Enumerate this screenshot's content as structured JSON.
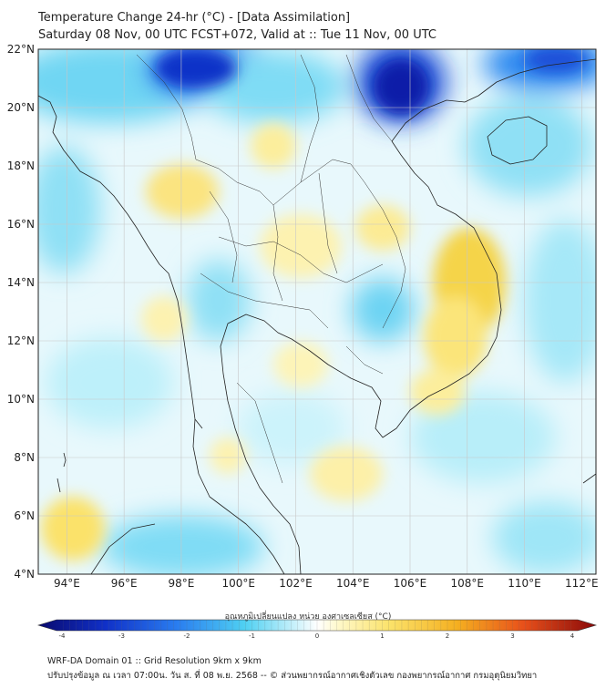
{
  "title": {
    "line1": "Temperature Change 24-hr (°C) - [Data Assimilation]",
    "line2": "Saturday 08 Nov, 00 UTC FCST+072, Valid at :: Tue 11 Nov, 00 UTC"
  },
  "map": {
    "lat_labels": [
      "22°N",
      "20°N",
      "18°N",
      "16°N",
      "14°N",
      "12°N",
      "10°N",
      "8°N",
      "6°N",
      "4°N"
    ],
    "lon_labels": [
      "94°E",
      "96°E",
      "98°E",
      "100°E",
      "102°E",
      "104°E",
      "106°E",
      "108°E",
      "110°E",
      "112°E"
    ],
    "lat_range": [
      4,
      22
    ],
    "lon_range": [
      93,
      112.5
    ]
  },
  "colorbar": {
    "title": "อุณหภูมิเปลี่ยนแปลง หน่วย องศาเซลเซียส (°C)",
    "ticks": [
      "-4",
      "-3",
      "-2",
      "-1",
      "0",
      "1",
      "2",
      "3",
      "4"
    ],
    "range": [
      -4,
      4
    ]
  },
  "footer": {
    "line1": "WRF-DA Domain 01 :: Grid Resolution 9km x 9km",
    "line2": "ปรับปรุงข้อมูล ณ เวลา 07:00น. วัน ส. ที่ 08 พ.ย. 2568 -- © ส่วนพยากรณ์อากาศเชิงตัวเลข กองพยากรณ์อากาศ กรมอุตุนิยมวิทยา"
  }
}
